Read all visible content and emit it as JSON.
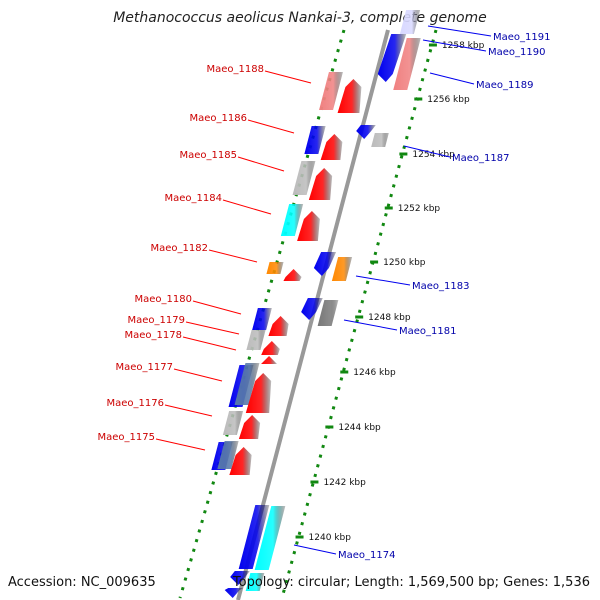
{
  "title": "Methanococcus aeolicus Nankai-3, complete genome",
  "footer": {
    "accession": "Accession: NC_009635",
    "topology": "Topology: circular; Length: 1,569,500 bp; Genes: 1,536"
  },
  "colors": {
    "red": "#ff0000",
    "pink": "#f08080",
    "blue": "#0000ee",
    "cyan": "#00ffff",
    "orange": "#ff8800",
    "gray": "#bbbbbb",
    "darkgray": "#777777",
    "lavender": "#d8d8ff",
    "steel": "#5577aa",
    "leftlabel": "#cc0000",
    "rightlabel": "#0000aa",
    "backbone": "#999999",
    "dots": "#118811"
  },
  "ticks": [
    "1240 kbp",
    "1242 kbp",
    "1244 kbp",
    "1246 kbp",
    "1248 kbp",
    "1250 kbp",
    "1252 kbp",
    "1254 kbp",
    "1256 kbp",
    "1258 kbp"
  ],
  "left_labels": [
    "Maeo_1188",
    "Maeo_1186",
    "Maeo_1185",
    "Maeo_1184",
    "Maeo_1182",
    "Maeo_1180",
    "Maeo_1179",
    "Maeo_1178",
    "Maeo_1177",
    "Maeo_1176",
    "Maeo_1175"
  ],
  "right_labels": [
    "Maeo_1191",
    "Maeo_1190",
    "Maeo_1189",
    "Maeo_1187",
    "Maeo_1183",
    "Maeo_1181",
    "Maeo_1174"
  ]
}
